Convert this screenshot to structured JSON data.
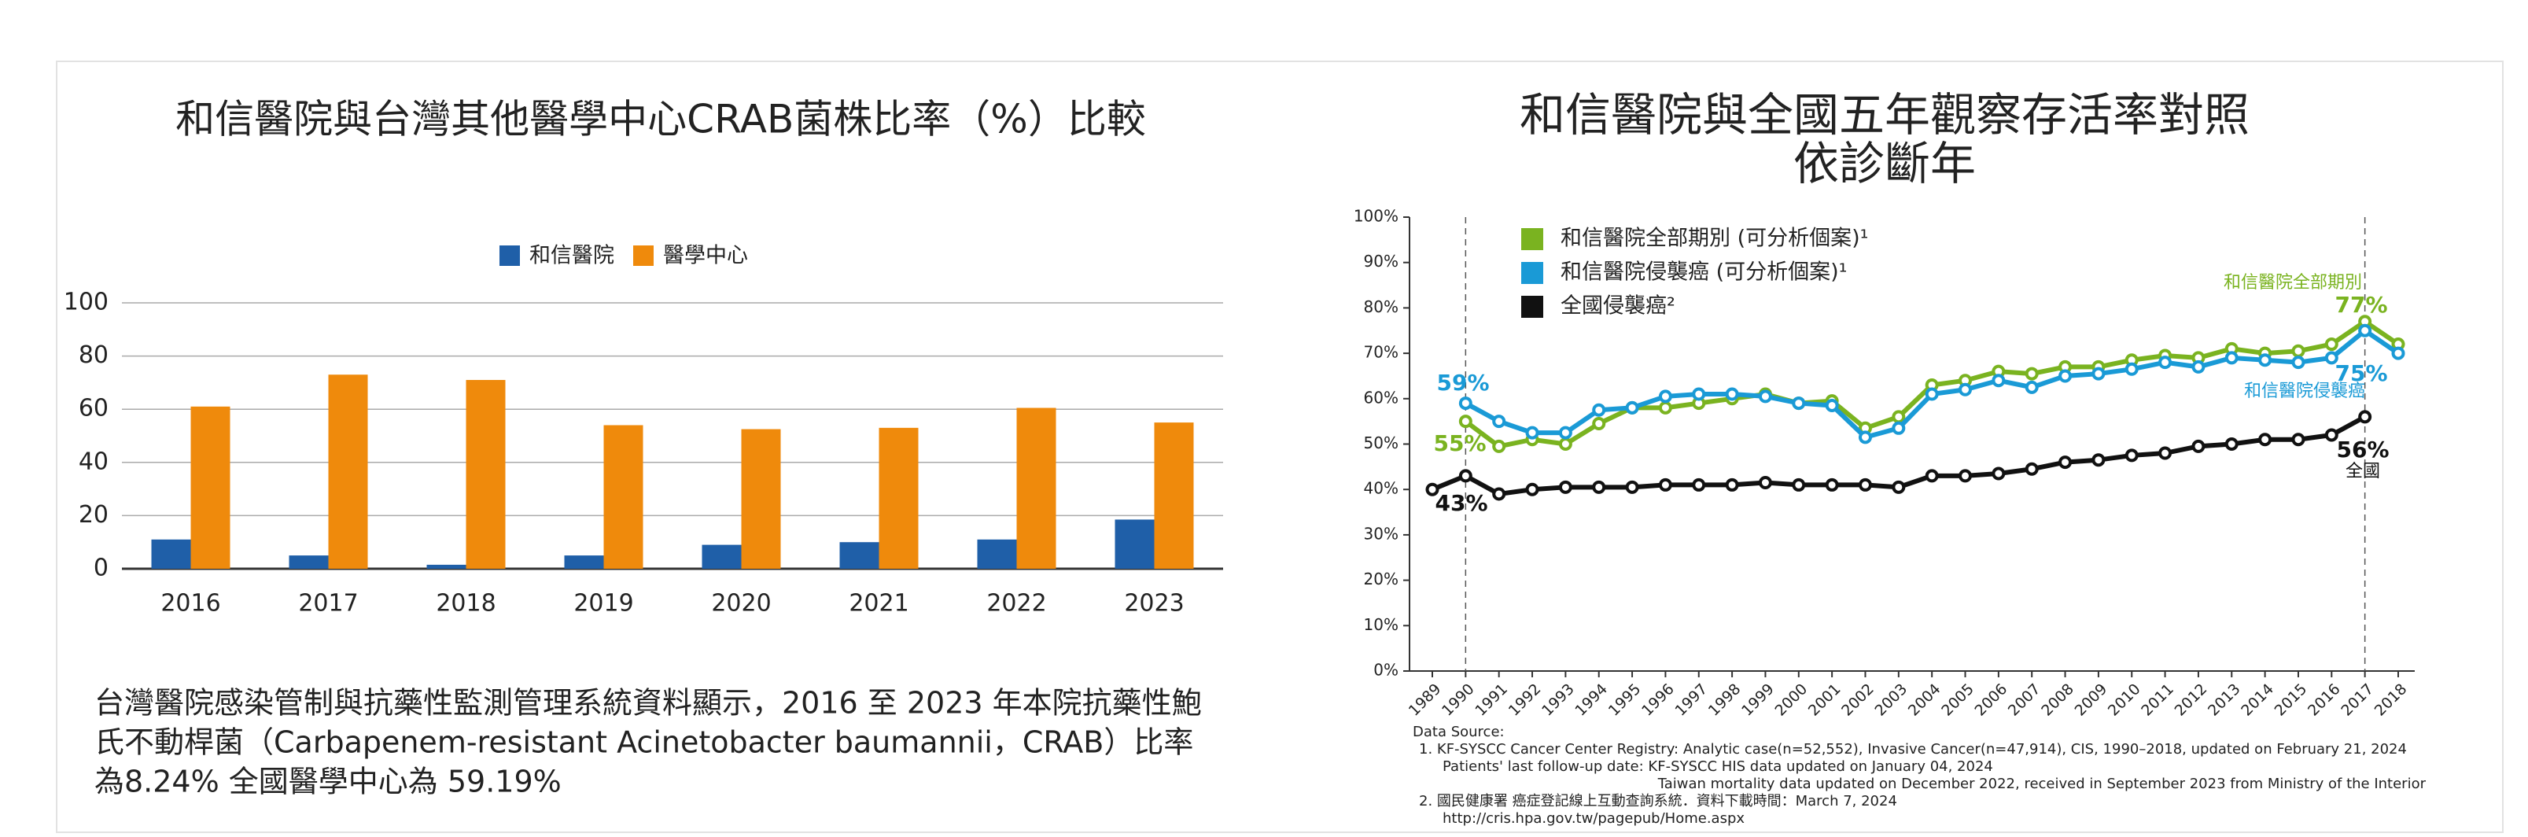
{
  "chart_data": [
    {
      "type": "bar",
      "title": "和信醫院與台灣其他醫學中心CRAB菌株比率（%）比較",
      "categories": [
        "2016",
        "2017",
        "2018",
        "2019",
        "2020",
        "2021",
        "2022",
        "2023"
      ],
      "series": [
        {
          "name": "和信醫院",
          "color": "#1f5fa8",
          "values": [
            11,
            5,
            1.5,
            5,
            9,
            10,
            11,
            18.5
          ]
        },
        {
          "name": "醫學中心",
          "color": "#ef8a0c",
          "values": [
            61,
            73,
            71,
            54,
            52.5,
            53,
            60.5,
            55
          ]
        }
      ],
      "ylim": [
        0,
        100
      ],
      "yticks": [
        0,
        20,
        40,
        60,
        80,
        100
      ],
      "grid": true,
      "legend": "top",
      "text": [
        "台灣醫院感染管制與抗藥性監測管理系統資料顯示，2016 至 2023 年本院抗藥性鮑",
        "氏不動桿菌（Carbapenem-resistant Acinetobacter baumannii，CRAB）比率",
        "為8.24% 全國醫學中心為 59.19%"
      ]
    },
    {
      "type": "line",
      "title": [
        "和信醫院與全國五年觀察存活率對照",
        "依診斷年"
      ],
      "x": [
        1989,
        1990,
        1991,
        1992,
        1993,
        1994,
        1995,
        1996,
        1997,
        1998,
        1999,
        2000,
        2001,
        2002,
        2003,
        2004,
        2005,
        2006,
        2007,
        2008,
        2009,
        2010,
        2011,
        2012,
        2013,
        2014,
        2015,
        2016,
        2017,
        2018
      ],
      "series": [
        {
          "name": "和信醫院全部期別 (可分析個案)¹",
          "color": "#7ab320",
          "values": [
            null,
            55,
            49.5,
            51,
            50,
            54.5,
            58,
            58,
            59,
            60,
            61,
            59,
            59.5,
            53.5,
            56,
            63,
            64,
            66,
            65.5,
            67,
            67,
            68.5,
            69.5,
            69,
            71,
            70,
            70.5,
            72,
            77,
            72
          ],
          "value_labels": {
            "1": "55%",
            "28": "77%"
          },
          "annotation": "和信醫院全部期別"
        },
        {
          "name": "和信醫院侵襲癌 (可分析個案)¹",
          "color": "#1a9ad6",
          "values": [
            null,
            59,
            55,
            52.5,
            52.5,
            57.5,
            58,
            60.5,
            61,
            61,
            60.5,
            59,
            58.5,
            51.5,
            53.5,
            61,
            62,
            64,
            62.5,
            65,
            65.5,
            66.5,
            68,
            67,
            69,
            68.5,
            68,
            69,
            75,
            70
          ],
          "value_labels": {
            "1": "59%",
            "28": "75%"
          },
          "annotation": "和信醫院侵襲癌"
        },
        {
          "name": "全國侵襲癌²",
          "color": "#111111",
          "values": [
            40,
            43,
            39,
            40,
            40.5,
            40.5,
            40.5,
            41,
            41,
            41,
            41.5,
            41,
            41,
            41,
            40.5,
            43,
            43,
            43.5,
            44.5,
            46,
            46.5,
            47.5,
            48,
            49.5,
            50,
            51,
            51,
            52,
            56,
            null
          ],
          "value_labels": {
            "1": "43%",
            "28": "56%"
          },
          "annotation": "全國"
        }
      ],
      "xlim": [
        1989,
        2018
      ],
      "xticks": [
        1989,
        1990,
        1991,
        1992,
        1993,
        1994,
        1995,
        1996,
        1997,
        1998,
        1999,
        2000,
        2001,
        2002,
        2003,
        2004,
        2005,
        2006,
        2007,
        2008,
        2009,
        2010,
        2011,
        2012,
        2013,
        2014,
        2015,
        2016,
        2017,
        2018
      ],
      "ylim": [
        0,
        100
      ],
      "yticks": [
        {
          "value": 0,
          "label": "0%"
        },
        {
          "value": 10,
          "label": "10%"
        },
        {
          "value": 20,
          "label": "20%"
        },
        {
          "value": 30,
          "label": "30%"
        },
        {
          "value": 40,
          "label": "40%"
        },
        {
          "value": 50,
          "label": "50%"
        },
        {
          "value": 60,
          "label": "60%"
        },
        {
          "value": 70,
          "label": "70%"
        },
        {
          "value": 80,
          "label": "80%"
        },
        {
          "value": 90,
          "label": "90%"
        },
        {
          "value": 100,
          "label": "100%"
        }
      ],
      "reference_lines_x": [
        1990,
        2017
      ],
      "legend": "upper left",
      "notes": [
        "Data Source:",
        "1.  KF-SYSCC Cancer Center Registry: Analytic case(n=52,552), Invasive Cancer(n=47,914), CIS, 1990–2018, updated on February 21, 2024",
        "Patients'   last follow-up date: KF-SYSCC HIS data updated on January 04, 2024",
        "Taiwan mortality data updated on December 2022, received in September 2023 from Ministry of the Interior",
        "2.  國民健康署 癌症登記線上互動查詢系統．資料下載時間：March 7, 2024",
        "http://cris.hpa.gov.tw/pagepub/Home.aspx"
      ]
    }
  ]
}
